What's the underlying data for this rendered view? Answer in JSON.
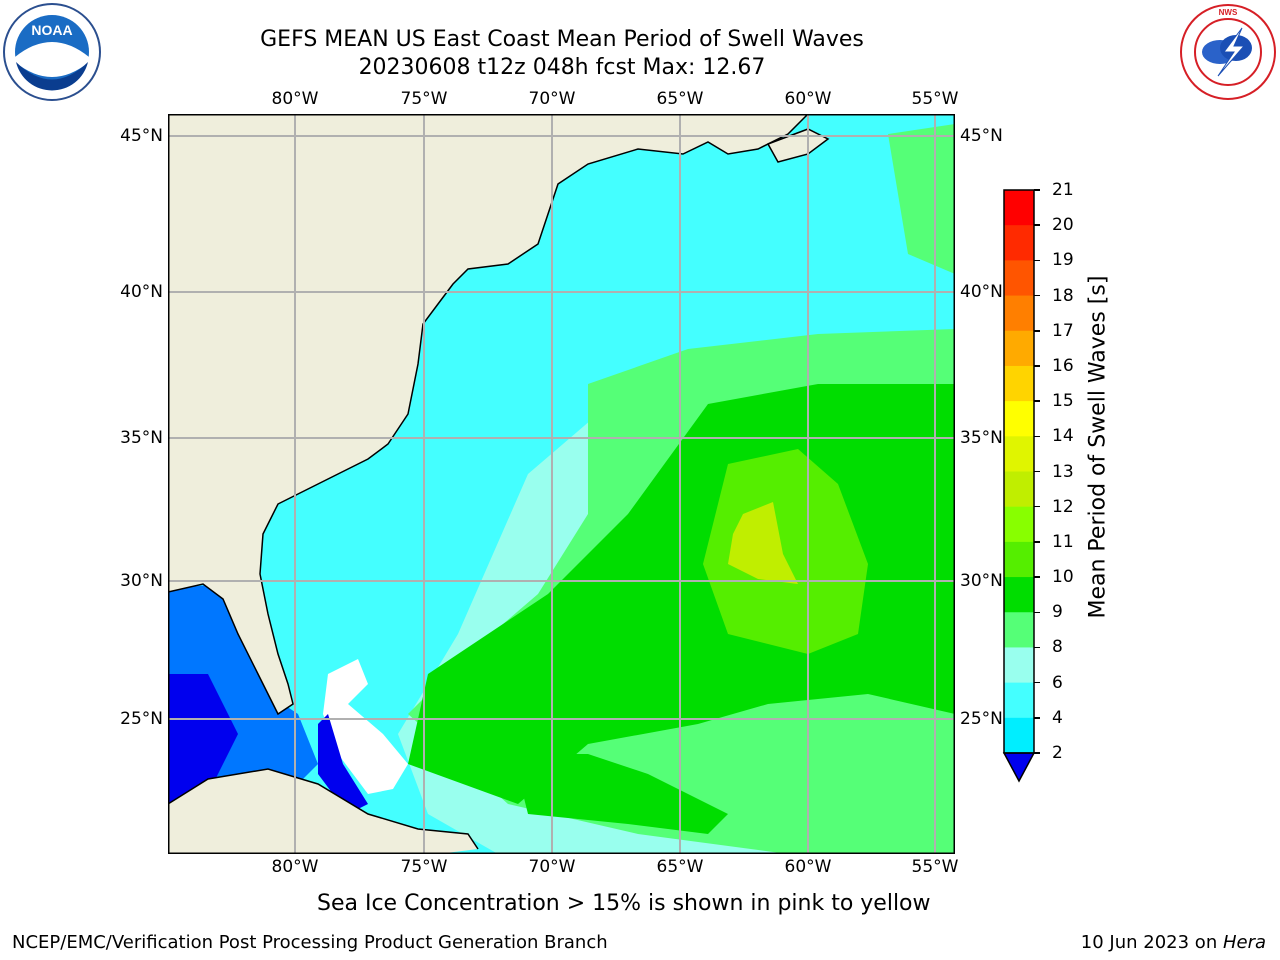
{
  "title": {
    "line1": "GEFS MEAN US East Coast Mean Period of Swell Waves",
    "line2": "20230608 t12z 048h fcst   Max: 12.67"
  },
  "map": {
    "lon_ticks": [
      "80°W",
      "75°W",
      "70°W",
      "65°W",
      "60°W",
      "55°W"
    ],
    "lat_ticks": [
      "45°N",
      "40°N",
      "35°N",
      "30°N",
      "25°N"
    ],
    "colors": {
      "land": "#efeedc",
      "coast": "#000000",
      "grid": "#b0b0b0",
      "no_data": "#ffffff"
    }
  },
  "colorbar": {
    "label": "Mean Period of Swell Waves [s]",
    "ticks": [
      "21",
      "20",
      "19",
      "18",
      "17",
      "16",
      "15",
      "14",
      "13",
      "12",
      "11",
      "10",
      "9",
      "8",
      "6",
      "4",
      "2"
    ],
    "colors": [
      "#ff0000",
      "#ff2a00",
      "#ff5500",
      "#ff7f00",
      "#ffaa00",
      "#ffd400",
      "#ffff00",
      "#e0f500",
      "#c0ee00",
      "#88ff00",
      "#55ee00",
      "#00dd00",
      "#55ff77",
      "#99ffee",
      "#44ffff",
      "#00eeff",
      "#0077ff",
      "#0000ee"
    ]
  },
  "logos": {
    "noaa": "NOAA",
    "nws": "NATIONAL WEATHER SERVICE"
  },
  "note": "Sea Ice Concentration > 15% is shown in pink to yellow",
  "footer": {
    "left": "NCEP/EMC/Verification Post Processing Product Generation Branch",
    "right_date": "10 Jun 2023 on ",
    "right_machine": "Hera"
  }
}
